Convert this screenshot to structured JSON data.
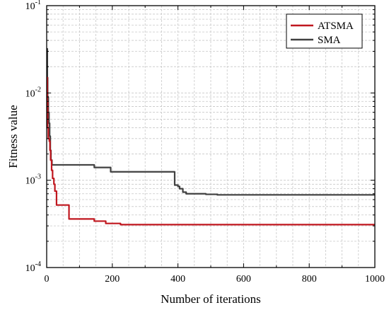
{
  "chart_data": {
    "type": "line",
    "title": "",
    "xlabel": "Number of iterations",
    "ylabel": "Fitness value",
    "xlim": [
      0,
      1000
    ],
    "ylim": [
      0.0001,
      0.1
    ],
    "yscale": "log",
    "grid": true,
    "grid_style": "dashed",
    "legend_position": "top-right",
    "x_ticks": [
      0,
      200,
      400,
      600,
      800,
      1000
    ],
    "x_tick_labels": [
      "0",
      "200",
      "400",
      "600",
      "800",
      "1000"
    ],
    "y_ticks": [
      0.0001,
      0.001,
      0.01,
      0.1
    ],
    "y_tick_labels": [
      {
        "base": "10",
        "exp": "-4"
      },
      {
        "base": "10",
        "exp": "-3"
      },
      {
        "base": "10",
        "exp": "-2"
      },
      {
        "base": "10",
        "exp": "-1"
      }
    ],
    "series": [
      {
        "name": "ATSMA",
        "color": "#c0171f",
        "points": [
          [
            1,
            0.015
          ],
          [
            2,
            0.008
          ],
          [
            3,
            0.004
          ],
          [
            5,
            0.003
          ],
          [
            8,
            0.0028
          ],
          [
            10,
            0.0022
          ],
          [
            12,
            0.0017
          ],
          [
            15,
            0.0013
          ],
          [
            18,
            0.00105
          ],
          [
            22,
            0.0009
          ],
          [
            25,
            0.00075
          ],
          [
            30,
            0.00052
          ],
          [
            65,
            0.00052
          ],
          [
            68,
            0.00036
          ],
          [
            140,
            0.00036
          ],
          [
            145,
            0.00034
          ],
          [
            175,
            0.00034
          ],
          [
            180,
            0.00032
          ],
          [
            225,
            0.00031
          ],
          [
            1000,
            0.00031
          ]
        ]
      },
      {
        "name": "SMA",
        "color": "#404040",
        "points": [
          [
            1,
            0.032
          ],
          [
            2,
            0.015
          ],
          [
            3,
            0.009
          ],
          [
            5,
            0.006
          ],
          [
            7,
            0.0045
          ],
          [
            9,
            0.0032
          ],
          [
            11,
            0.0022
          ],
          [
            13,
            0.0017
          ],
          [
            16,
            0.0015
          ],
          [
            140,
            0.0015
          ],
          [
            145,
            0.0014
          ],
          [
            190,
            0.0014
          ],
          [
            195,
            0.00125
          ],
          [
            385,
            0.00125
          ],
          [
            390,
            0.00088
          ],
          [
            400,
            0.00085
          ],
          [
            405,
            0.0008
          ],
          [
            415,
            0.00073
          ],
          [
            425,
            0.0007
          ],
          [
            480,
            0.0007
          ],
          [
            485,
            0.00069
          ],
          [
            520,
            0.00068
          ],
          [
            1000,
            0.00068
          ]
        ]
      }
    ]
  }
}
